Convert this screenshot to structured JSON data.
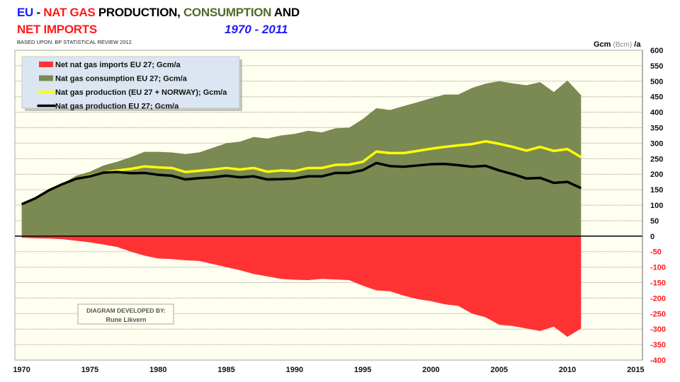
{
  "title": {
    "line1": [
      {
        "text": "EU",
        "color": "blue"
      },
      {
        "text": " - ",
        "color": "black"
      },
      {
        "text": "NAT GAS",
        "color": "red"
      },
      {
        "text": " PRODUCTION, ",
        "color": "black"
      },
      {
        "text": "CONSUMPTION",
        "color": "olive"
      },
      {
        "text": " AND",
        "color": "black"
      }
    ],
    "line2": "NET IMPORTS",
    "period": "1970 - 2011",
    "subtitle": "BASED  UPON: BP STATISTICAL REVIEW 2012"
  },
  "credit": {
    "line1": "DIAGRAM DEVELOPED BY:",
    "line2": "Rune Likvern"
  },
  "chart_data": {
    "type": "area",
    "ylabel": "Gcm (Bcm) /a",
    "ylabel_parts": {
      "main": "Gcm",
      "paren": "(Bcm)",
      "unit": "/a"
    },
    "xlim": [
      1970,
      2015
    ],
    "ylim": [
      -400,
      600
    ],
    "xticks": [
      1970,
      1975,
      1980,
      1985,
      1990,
      1995,
      2000,
      2005,
      2010,
      2015
    ],
    "yticks": [
      600,
      550,
      500,
      450,
      400,
      350,
      300,
      250,
      200,
      150,
      100,
      50,
      0,
      -50,
      -100,
      -150,
      -200,
      -250,
      -300,
      -350,
      -400
    ],
    "grid": true,
    "legend_placement": "top-left",
    "colors": {
      "imports": "#ff3333",
      "consumption": "#7a8a52",
      "prod_norway": "#ffff00",
      "prod_eu": "#000000",
      "background": "#fffff0",
      "negative_tick": "#ff1a1a"
    },
    "x": [
      1970,
      1971,
      1972,
      1973,
      1974,
      1975,
      1976,
      1977,
      1978,
      1979,
      1980,
      1981,
      1982,
      1983,
      1984,
      1985,
      1986,
      1987,
      1988,
      1989,
      1990,
      1991,
      1992,
      1993,
      1994,
      1995,
      1996,
      1997,
      1998,
      1999,
      2000,
      2001,
      2002,
      2003,
      2004,
      2005,
      2006,
      2007,
      2008,
      2009,
      2010,
      2011
    ],
    "series": [
      {
        "name": "Net nat gas imports EU 27; Gcm/a",
        "kind": "area",
        "values": [
          -5,
          -7,
          -8,
          -10,
          -15,
          -20,
          -27,
          -35,
          -50,
          -63,
          -72,
          -74,
          -78,
          -80,
          -90,
          -100,
          -110,
          -122,
          -130,
          -138,
          -141,
          -142,
          -138,
          -140,
          -142,
          -160,
          -175,
          -178,
          -192,
          -203,
          -210,
          -220,
          -225,
          -250,
          -262,
          -286,
          -290,
          -298,
          -306,
          -292,
          -325,
          -298
        ]
      },
      {
        "name": "Nat gas consumption  EU 27; Gcm/a",
        "kind": "area",
        "values": [
          103,
          125,
          148,
          170,
          195,
          208,
          228,
          240,
          255,
          272,
          272,
          270,
          265,
          270,
          285,
          300,
          305,
          320,
          315,
          325,
          330,
          340,
          335,
          348,
          350,
          378,
          413,
          407,
          420,
          432,
          445,
          457,
          457,
          478,
          492,
          500,
          493,
          487,
          497,
          465,
          502,
          455
        ]
      },
      {
        "name": "Nat gas production (EU 27 + NORWAY); Gcm/a",
        "kind": "line",
        "values": [
          103,
          122,
          148,
          168,
          185,
          195,
          205,
          212,
          217,
          225,
          222,
          220,
          207,
          211,
          215,
          220,
          215,
          220,
          208,
          212,
          210,
          220,
          220,
          230,
          231,
          240,
          273,
          268,
          268,
          275,
          282,
          288,
          293,
          297,
          306,
          298,
          288,
          276,
          288,
          275,
          281,
          255
        ]
      },
      {
        "name": "Nat gas production EU 27; Gcm/a",
        "kind": "line",
        "values": [
          103,
          122,
          148,
          168,
          185,
          193,
          205,
          207,
          203,
          204,
          198,
          195,
          183,
          187,
          190,
          195,
          190,
          193,
          183,
          184,
          186,
          193,
          193,
          204,
          204,
          213,
          236,
          226,
          224,
          228,
          232,
          233,
          229,
          224,
          227,
          212,
          200,
          186,
          188,
          172,
          175,
          155
        ]
      }
    ]
  }
}
